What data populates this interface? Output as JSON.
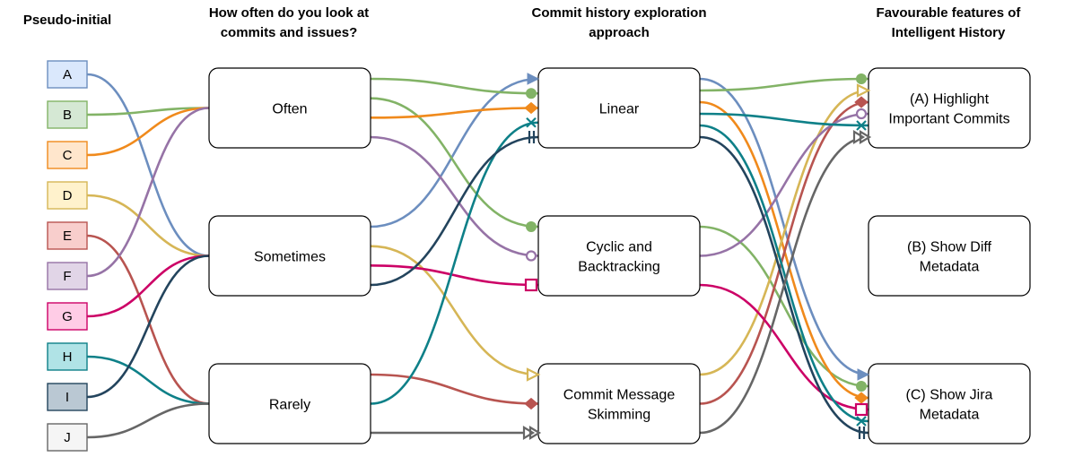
{
  "headers": {
    "participants": "Pseudo-initial",
    "frequency": [
      "How often do you look at",
      "commits and issues?"
    ],
    "approach": [
      "Commit history exploration",
      "approach"
    ],
    "features": [
      "Favourable features of",
      "Intelligent History"
    ]
  },
  "participants": [
    {
      "id": "A",
      "fill": "#dae8fc",
      "stroke": "#6c8ebf",
      "line": "#6c8ebf"
    },
    {
      "id": "B",
      "fill": "#d5e8d4",
      "stroke": "#82b366",
      "line": "#82b366"
    },
    {
      "id": "C",
      "fill": "#ffe6cc",
      "stroke": "#f08a1c",
      "line": "#f08a1c"
    },
    {
      "id": "D",
      "fill": "#fff2cc",
      "stroke": "#d6b656",
      "line": "#d6b656"
    },
    {
      "id": "E",
      "fill": "#f8cecc",
      "stroke": "#b85450",
      "line": "#b85450"
    },
    {
      "id": "F",
      "fill": "#e1d5e7",
      "stroke": "#9673a6",
      "line": "#9673a6"
    },
    {
      "id": "G",
      "fill": "#ffcce6",
      "stroke": "#cc0066",
      "line": "#cc0066"
    },
    {
      "id": "H",
      "fill": "#b0e3e6",
      "stroke": "#0e8088",
      "line": "#0e8088"
    },
    {
      "id": "I",
      "fill": "#bac8d3",
      "stroke": "#23445d",
      "line": "#23445d"
    },
    {
      "id": "J",
      "fill": "#f5f5f5",
      "stroke": "#666666",
      "line": "#666666"
    }
  ],
  "frequency_nodes": [
    {
      "key": "often",
      "lines": [
        "Often"
      ]
    },
    {
      "key": "sometimes",
      "lines": [
        "Sometimes"
      ]
    },
    {
      "key": "rarely",
      "lines": [
        "Rarely"
      ]
    }
  ],
  "approach_nodes": [
    {
      "key": "linear",
      "lines": [
        "Linear"
      ]
    },
    {
      "key": "cyclic",
      "lines": [
        "Cyclic and",
        "Backtracking"
      ]
    },
    {
      "key": "skimming",
      "lines": [
        "Commit Message",
        "Skimming"
      ]
    }
  ],
  "feature_nodes": [
    {
      "key": "highlight",
      "lines": [
        "(A) Highlight",
        "Important Commits"
      ]
    },
    {
      "key": "diff",
      "lines": [
        "(B) Show Diff",
        "Metadata"
      ]
    },
    {
      "key": "jira",
      "lines": [
        "(C) Show Jira",
        "Metadata"
      ]
    }
  ],
  "paths": [
    {
      "participant": "A",
      "frequency": "sometimes",
      "approach": "linear",
      "feature": "jira",
      "marker": "arrow"
    },
    {
      "participant": "B",
      "frequency": "often",
      "approach": "linear",
      "feature": "highlight",
      "marker": "circle"
    },
    {
      "participant": "B",
      "frequency": "often",
      "approach": "cyclic",
      "feature": "jira",
      "marker": "circle"
    },
    {
      "participant": "C",
      "frequency": "often",
      "approach": "linear",
      "feature": "jira",
      "marker": "diamond"
    },
    {
      "participant": "D",
      "frequency": "sometimes",
      "approach": "skimming",
      "feature": "highlight",
      "marker": "open-arrow"
    },
    {
      "participant": "E",
      "frequency": "rarely",
      "approach": "skimming",
      "feature": "highlight",
      "marker": "diamond"
    },
    {
      "participant": "F",
      "frequency": "often",
      "approach": "cyclic",
      "feature": "highlight",
      "marker": "open-circle"
    },
    {
      "participant": "G",
      "frequency": "sometimes",
      "approach": "cyclic",
      "feature": "jira",
      "marker": "open-square"
    },
    {
      "participant": "H",
      "frequency": "rarely",
      "approach": "linear",
      "feature": "highlight",
      "marker": "cross"
    },
    {
      "participant": "H",
      "frequency": "rarely",
      "approach": "linear",
      "feature": "jira",
      "marker": "cross"
    },
    {
      "participant": "I",
      "frequency": "sometimes",
      "approach": "linear",
      "feature": "jira",
      "marker": "double-bar"
    },
    {
      "participant": "J",
      "frequency": "rarely",
      "approach": "skimming",
      "feature": "highlight",
      "marker": "double-arrow"
    }
  ]
}
